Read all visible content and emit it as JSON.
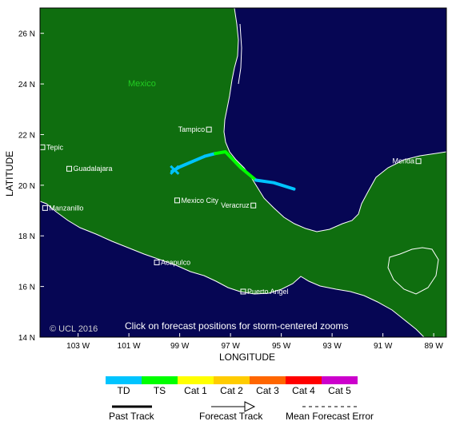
{
  "map": {
    "lon_range": [
      -104.5,
      -88.5
    ],
    "lat_range": [
      14,
      27
    ],
    "colors": {
      "ocean": "#060654",
      "land": "#0f6e0f",
      "coast": "#ffffff",
      "frame": "#000000"
    },
    "country_label": "Mexico",
    "credit": "© UCL 2016",
    "note": "Click on forecast positions for storm-centered zooms"
  },
  "axes": {
    "x_title": "LONGITUDE",
    "y_title": "LATITUDE",
    "x_ticks": [
      {
        "lon": -103,
        "label": "103 W"
      },
      {
        "lon": -101,
        "label": "101 W"
      },
      {
        "lon": -99,
        "label": "99 W"
      },
      {
        "lon": -97,
        "label": "97 W"
      },
      {
        "lon": -95,
        "label": "95 W"
      },
      {
        "lon": -93,
        "label": "93 W"
      },
      {
        "lon": -91,
        "label": "91 W"
      },
      {
        "lon": -89,
        "label": "89 W"
      }
    ],
    "y_ticks": [
      {
        "lat": 14,
        "label": "14 N"
      },
      {
        "lat": 16,
        "label": "16 N"
      },
      {
        "lat": 18,
        "label": "18 N"
      },
      {
        "lat": 20,
        "label": "20 N"
      },
      {
        "lat": 22,
        "label": "22 N"
      },
      {
        "lat": 24,
        "label": "24 N"
      },
      {
        "lat": 26,
        "label": "26 N"
      }
    ]
  },
  "cities": [
    {
      "name": "Tampico",
      "lon": -97.85,
      "lat": 22.2,
      "label_side": "left"
    },
    {
      "name": "Tepic",
      "lon": -104.9,
      "lat": 21.5,
      "label_side": "right"
    },
    {
      "name": "Guadalajara",
      "lon": -103.35,
      "lat": 20.65,
      "label_side": "right"
    },
    {
      "name": "Merida",
      "lon": -89.6,
      "lat": 20.95,
      "label_side": "left"
    },
    {
      "name": "Mexico City",
      "lon": -99.1,
      "lat": 19.4,
      "label_side": "right"
    },
    {
      "name": "Manzanillo",
      "lon": -104.3,
      "lat": 19.1,
      "label_side": "right"
    },
    {
      "name": "Veracruz",
      "lon": -96.1,
      "lat": 19.2,
      "label_side": "left"
    },
    {
      "name": "Acapulco",
      "lon": -99.9,
      "lat": 16.95,
      "label_side": "right"
    },
    {
      "name": "Puerto Angel",
      "lon": -96.5,
      "lat": 15.8,
      "label_side": "right"
    }
  ],
  "track": {
    "segments": [
      {
        "category": "TD",
        "color": "#00c4ff",
        "points": [
          [
            -99.3,
            20.55
          ],
          [
            -99.0,
            20.72
          ],
          [
            -98.0,
            21.15
          ],
          [
            -97.6,
            21.25
          ]
        ]
      },
      {
        "category": "TS",
        "color": "#00ff00",
        "points": [
          [
            -97.6,
            21.25
          ],
          [
            -97.2,
            21.32
          ],
          [
            -96.6,
            20.7
          ],
          [
            -96.0,
            20.2
          ]
        ]
      },
      {
        "category": "TD",
        "color": "#00c4ff",
        "points": [
          [
            -96.0,
            20.2
          ],
          [
            -95.3,
            20.1
          ],
          [
            -94.5,
            19.85
          ]
        ]
      }
    ],
    "current_position": {
      "lon": -99.2,
      "lat": 20.6,
      "color": "#00c4ff"
    }
  },
  "legend": {
    "intensity": [
      {
        "label": "TD",
        "color": "#00c4ff"
      },
      {
        "label": "TS",
        "color": "#00ff00"
      },
      {
        "label": "Cat 1",
        "color": "#ffff00"
      },
      {
        "label": "Cat 2",
        "color": "#ffcc00"
      },
      {
        "label": "Cat 3",
        "color": "#ff6600"
      },
      {
        "label": "Cat 4",
        "color": "#ff0000"
      },
      {
        "label": "Cat 5",
        "color": "#cc00cc"
      }
    ],
    "lines": [
      {
        "label": "Past Track",
        "style": "thick"
      },
      {
        "label": "Forecast Track",
        "style": "arrow"
      },
      {
        "label": "Mean Forecast Error",
        "style": "dashed"
      }
    ]
  }
}
